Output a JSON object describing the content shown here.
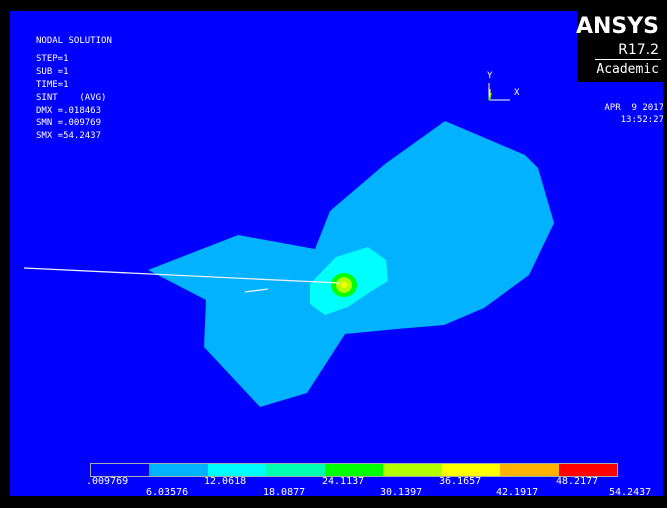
{
  "info": {
    "title": "NODAL SOLUTION",
    "step": "STEP=1",
    "sub": "SUB =1",
    "time": "TIME=1",
    "result": "SINT    (AVG)",
    "dmx": "DMX =.018463",
    "smn": "SMN =.009769",
    "smx": "SMX =54.2437"
  },
  "logo": {
    "brand": "ANSYS",
    "version": "R17.2",
    "edition": "Academic"
  },
  "date": {
    "date": "APR  9 2017",
    "time": "13:52:27"
  },
  "triad": {
    "y_label": "Y",
    "x_label": "X"
  },
  "legend": {
    "colors": [
      "#0000ff",
      "#00b2ff",
      "#00ffff",
      "#00ffb2",
      "#00ff00",
      "#b2ff00",
      "#ffff00",
      "#ffb200",
      "#ff0000"
    ],
    "top_ticks": [
      ".009769",
      "12.0618",
      "24.1137",
      "36.1657",
      "48.2177"
    ],
    "bottom_ticks": [
      "6.03576",
      "18.0877",
      "30.1397",
      "42.1917",
      "54.2437"
    ]
  },
  "model": {
    "outer_color": "#00b2ff",
    "inner_color": "#00ffff",
    "hotspot_color": "#b2ff00"
  }
}
